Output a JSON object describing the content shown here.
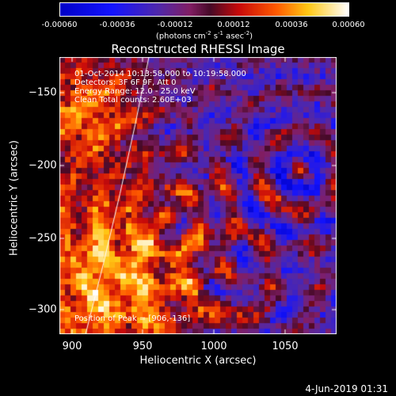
{
  "colorbar": {
    "ticks": [
      "-0.00060",
      "-0.00036",
      "-0.00012",
      "0.00012",
      "0.00036",
      "0.00060"
    ],
    "units_prefix": "(photons cm",
    "units_exp1": "-2",
    "units_mid1": " s",
    "units_exp2": "-1",
    "units_mid2": " asec",
    "units_exp3": "-2",
    "units_suffix": ")"
  },
  "title": "Reconstructed RHESSI Image",
  "annotation": {
    "time_range": "01-Oct-2014 10:13:58.000 to 10:19:58.000",
    "detectors": "Detectors: 3F 6F 9F, Att 0",
    "energy": "Energy Range: 12.0 - 25.0 keV",
    "method": "Clean     Total counts: 2.60E+03",
    "peak": "Position of Peak = [906,-136]"
  },
  "axes": {
    "xlabel": "Heliocentric X (arcsec)",
    "ylabel": "Heliocentric Y (arcsec)",
    "xticks": [
      "900",
      "950",
      "1000",
      "1050"
    ],
    "yticks": [
      "−150",
      "−200",
      "−250",
      "−300"
    ]
  },
  "footer": {
    "date": "4-Jun-2019 01:31"
  }
}
